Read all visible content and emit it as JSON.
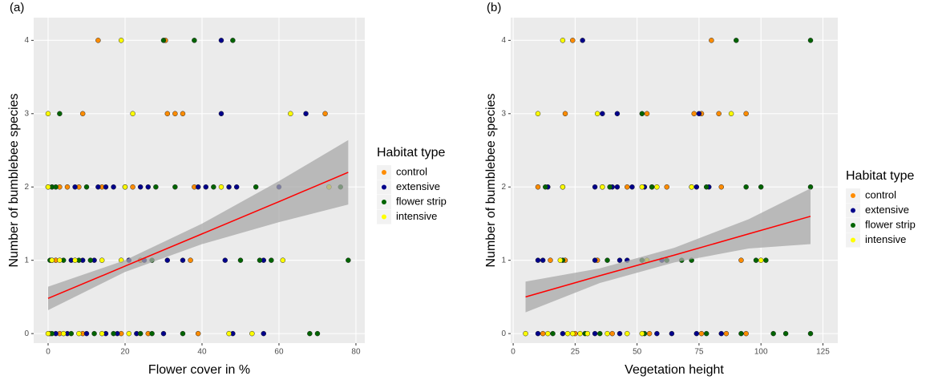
{
  "chart_data": [
    {
      "type": "scatter",
      "panel_label": "(a)",
      "x_label": "Flower cover in %",
      "y_label": "Number of bumblebee species",
      "legend_title": "Habitat type",
      "grid": true,
      "xlim": [
        -3.75,
        82.3
      ],
      "ylim": [
        -0.13,
        4.31
      ],
      "xticks": [
        0,
        20,
        40,
        60,
        80
      ],
      "yticks": [
        0,
        1,
        2,
        3,
        4
      ],
      "series": [
        {
          "name": "control",
          "color": "#ff8c00",
          "x": [
            13,
            30.5,
            9,
            31,
            33,
            35,
            72,
            0,
            1,
            3,
            5,
            8,
            14,
            22,
            38,
            2,
            24,
            37,
            0.5,
            3,
            9,
            19,
            26,
            39
          ],
          "values": [
            4,
            4,
            3,
            3,
            3,
            3,
            3,
            2,
            2,
            2,
            2,
            2,
            2,
            2,
            2,
            1,
            1,
            1,
            0,
            0,
            0,
            0,
            0,
            0
          ]
        },
        {
          "name": "extensive",
          "color": "#00008b",
          "x": [
            45,
            45,
            67,
            7,
            13,
            15,
            17,
            20,
            24,
            26,
            39,
            41,
            47,
            49,
            60,
            1,
            6,
            9,
            12,
            21,
            25,
            31,
            35,
            46,
            56,
            2,
            5,
            10,
            15,
            18,
            23,
            30,
            48,
            56
          ],
          "values": [
            4,
            3,
            3,
            2,
            2,
            2,
            2,
            2,
            2,
            2,
            2,
            2,
            2,
            2,
            2,
            1,
            1,
            1,
            1,
            1,
            1,
            1,
            1,
            1,
            1,
            0,
            0,
            0,
            0,
            0,
            0,
            0,
            0,
            0
          ]
        },
        {
          "name": "flower strip",
          "color": "#006400",
          "x": [
            30,
            38,
            48,
            3,
            1,
            2,
            10,
            28,
            33,
            43,
            54,
            76,
            0.5,
            4,
            8,
            11,
            27,
            50,
            55,
            58,
            78,
            1,
            6,
            12,
            17,
            24,
            27,
            35,
            68,
            70
          ],
          "values": [
            4,
            4,
            4,
            3,
            2,
            2,
            2,
            2,
            2,
            2,
            2,
            2,
            1,
            1,
            1,
            1,
            1,
            1,
            1,
            1,
            1,
            0,
            0,
            0,
            0,
            0,
            0,
            0,
            0,
            0
          ]
        },
        {
          "name": "intensive",
          "color": "#ffff00",
          "x": [
            19,
            0,
            22,
            63,
            0,
            20,
            45,
            73,
            1,
            3,
            7,
            14,
            19,
            61,
            0,
            4,
            8,
            14,
            21,
            47,
            53
          ],
          "values": [
            4,
            3,
            3,
            3,
            2,
            2,
            2,
            2,
            1,
            1,
            1,
            1,
            1,
            1,
            0,
            0,
            0,
            0,
            0,
            0,
            0
          ]
        }
      ],
      "fit": {
        "color": "#ff0000",
        "band_color": "#a8a8a8",
        "x": [
          0,
          20,
          40,
          60,
          78
        ],
        "values": [
          0.48,
          0.92,
          1.36,
          1.8,
          2.2
        ],
        "lower": [
          0.32,
          0.84,
          1.22,
          1.52,
          1.76
        ],
        "upper": [
          0.64,
          1.0,
          1.5,
          2.08,
          2.64
        ]
      }
    },
    {
      "type": "scatter",
      "panel_label": "(b)",
      "x_label": "Vegetation height",
      "y_label": "Number of bumblebee species",
      "legend_title": "Habitat type",
      "grid": true,
      "xlim": [
        -1,
        131
      ],
      "ylim": [
        -0.13,
        4.31
      ],
      "xticks": [
        0,
        25,
        50,
        75,
        100,
        125
      ],
      "yticks": [
        0,
        1,
        2,
        3,
        4
      ],
      "series": [
        {
          "name": "control",
          "color": "#ff8c00",
          "x": [
            24,
            80,
            21,
            54,
            73,
            76,
            83,
            94,
            10,
            20,
            36,
            46,
            56,
            62,
            72,
            84,
            15,
            21,
            34,
            92,
            12,
            25,
            40,
            55,
            76,
            86,
            94
          ],
          "values": [
            4,
            4,
            3,
            3,
            3,
            3,
            3,
            3,
            2,
            2,
            2,
            2,
            2,
            2,
            2,
            2,
            1,
            1,
            1,
            1,
            0,
            0,
            0,
            0,
            0,
            0,
            0
          ]
        },
        {
          "name": "extensive",
          "color": "#00008b",
          "x": [
            28,
            36,
            42,
            75,
            14,
            33,
            40,
            42,
            48,
            53,
            74,
            79,
            10,
            12,
            33,
            43,
            46,
            60,
            10,
            20,
            33,
            43,
            58,
            64,
            74,
            84
          ],
          "values": [
            4,
            3,
            3,
            3,
            2,
            2,
            2,
            2,
            2,
            2,
            2,
            2,
            1,
            1,
            1,
            1,
            1,
            1,
            0,
            0,
            0,
            0,
            0,
            0,
            0,
            0
          ]
        },
        {
          "name": "flower strip",
          "color": "#006400",
          "x": [
            90,
            120,
            52,
            13,
            39,
            56,
            78,
            94,
            100,
            120,
            20,
            38,
            52,
            62,
            68,
            72,
            98,
            102,
            16,
            29,
            35,
            53,
            78,
            92,
            105,
            110,
            120
          ],
          "values": [
            4,
            4,
            3,
            2,
            2,
            2,
            2,
            2,
            2,
            2,
            1,
            1,
            1,
            1,
            1,
            1,
            1,
            1,
            0,
            0,
            0,
            0,
            0,
            0,
            0,
            0,
            0
          ]
        },
        {
          "name": "intensive",
          "color": "#ffff00",
          "x": [
            20,
            10,
            34,
            88,
            20,
            36,
            52,
            58,
            72,
            19,
            54,
            100,
            5,
            14,
            22,
            24,
            27,
            30,
            38,
            46,
            52
          ],
          "values": [
            4,
            3,
            3,
            3,
            2,
            2,
            2,
            2,
            2,
            1,
            1,
            1,
            0,
            0,
            0,
            0,
            0,
            0,
            0,
            0,
            0
          ]
        }
      ],
      "fit": {
        "color": "#ff0000",
        "band_color": "#a8a8a8",
        "x": [
          5,
          35,
          65,
          95,
          120
        ],
        "values": [
          0.5,
          0.79,
          1.07,
          1.36,
          1.6
        ],
        "lower": [
          0.29,
          0.69,
          0.97,
          1.16,
          1.22
        ],
        "upper": [
          0.71,
          0.89,
          1.17,
          1.56,
          1.98
        ]
      }
    }
  ]
}
